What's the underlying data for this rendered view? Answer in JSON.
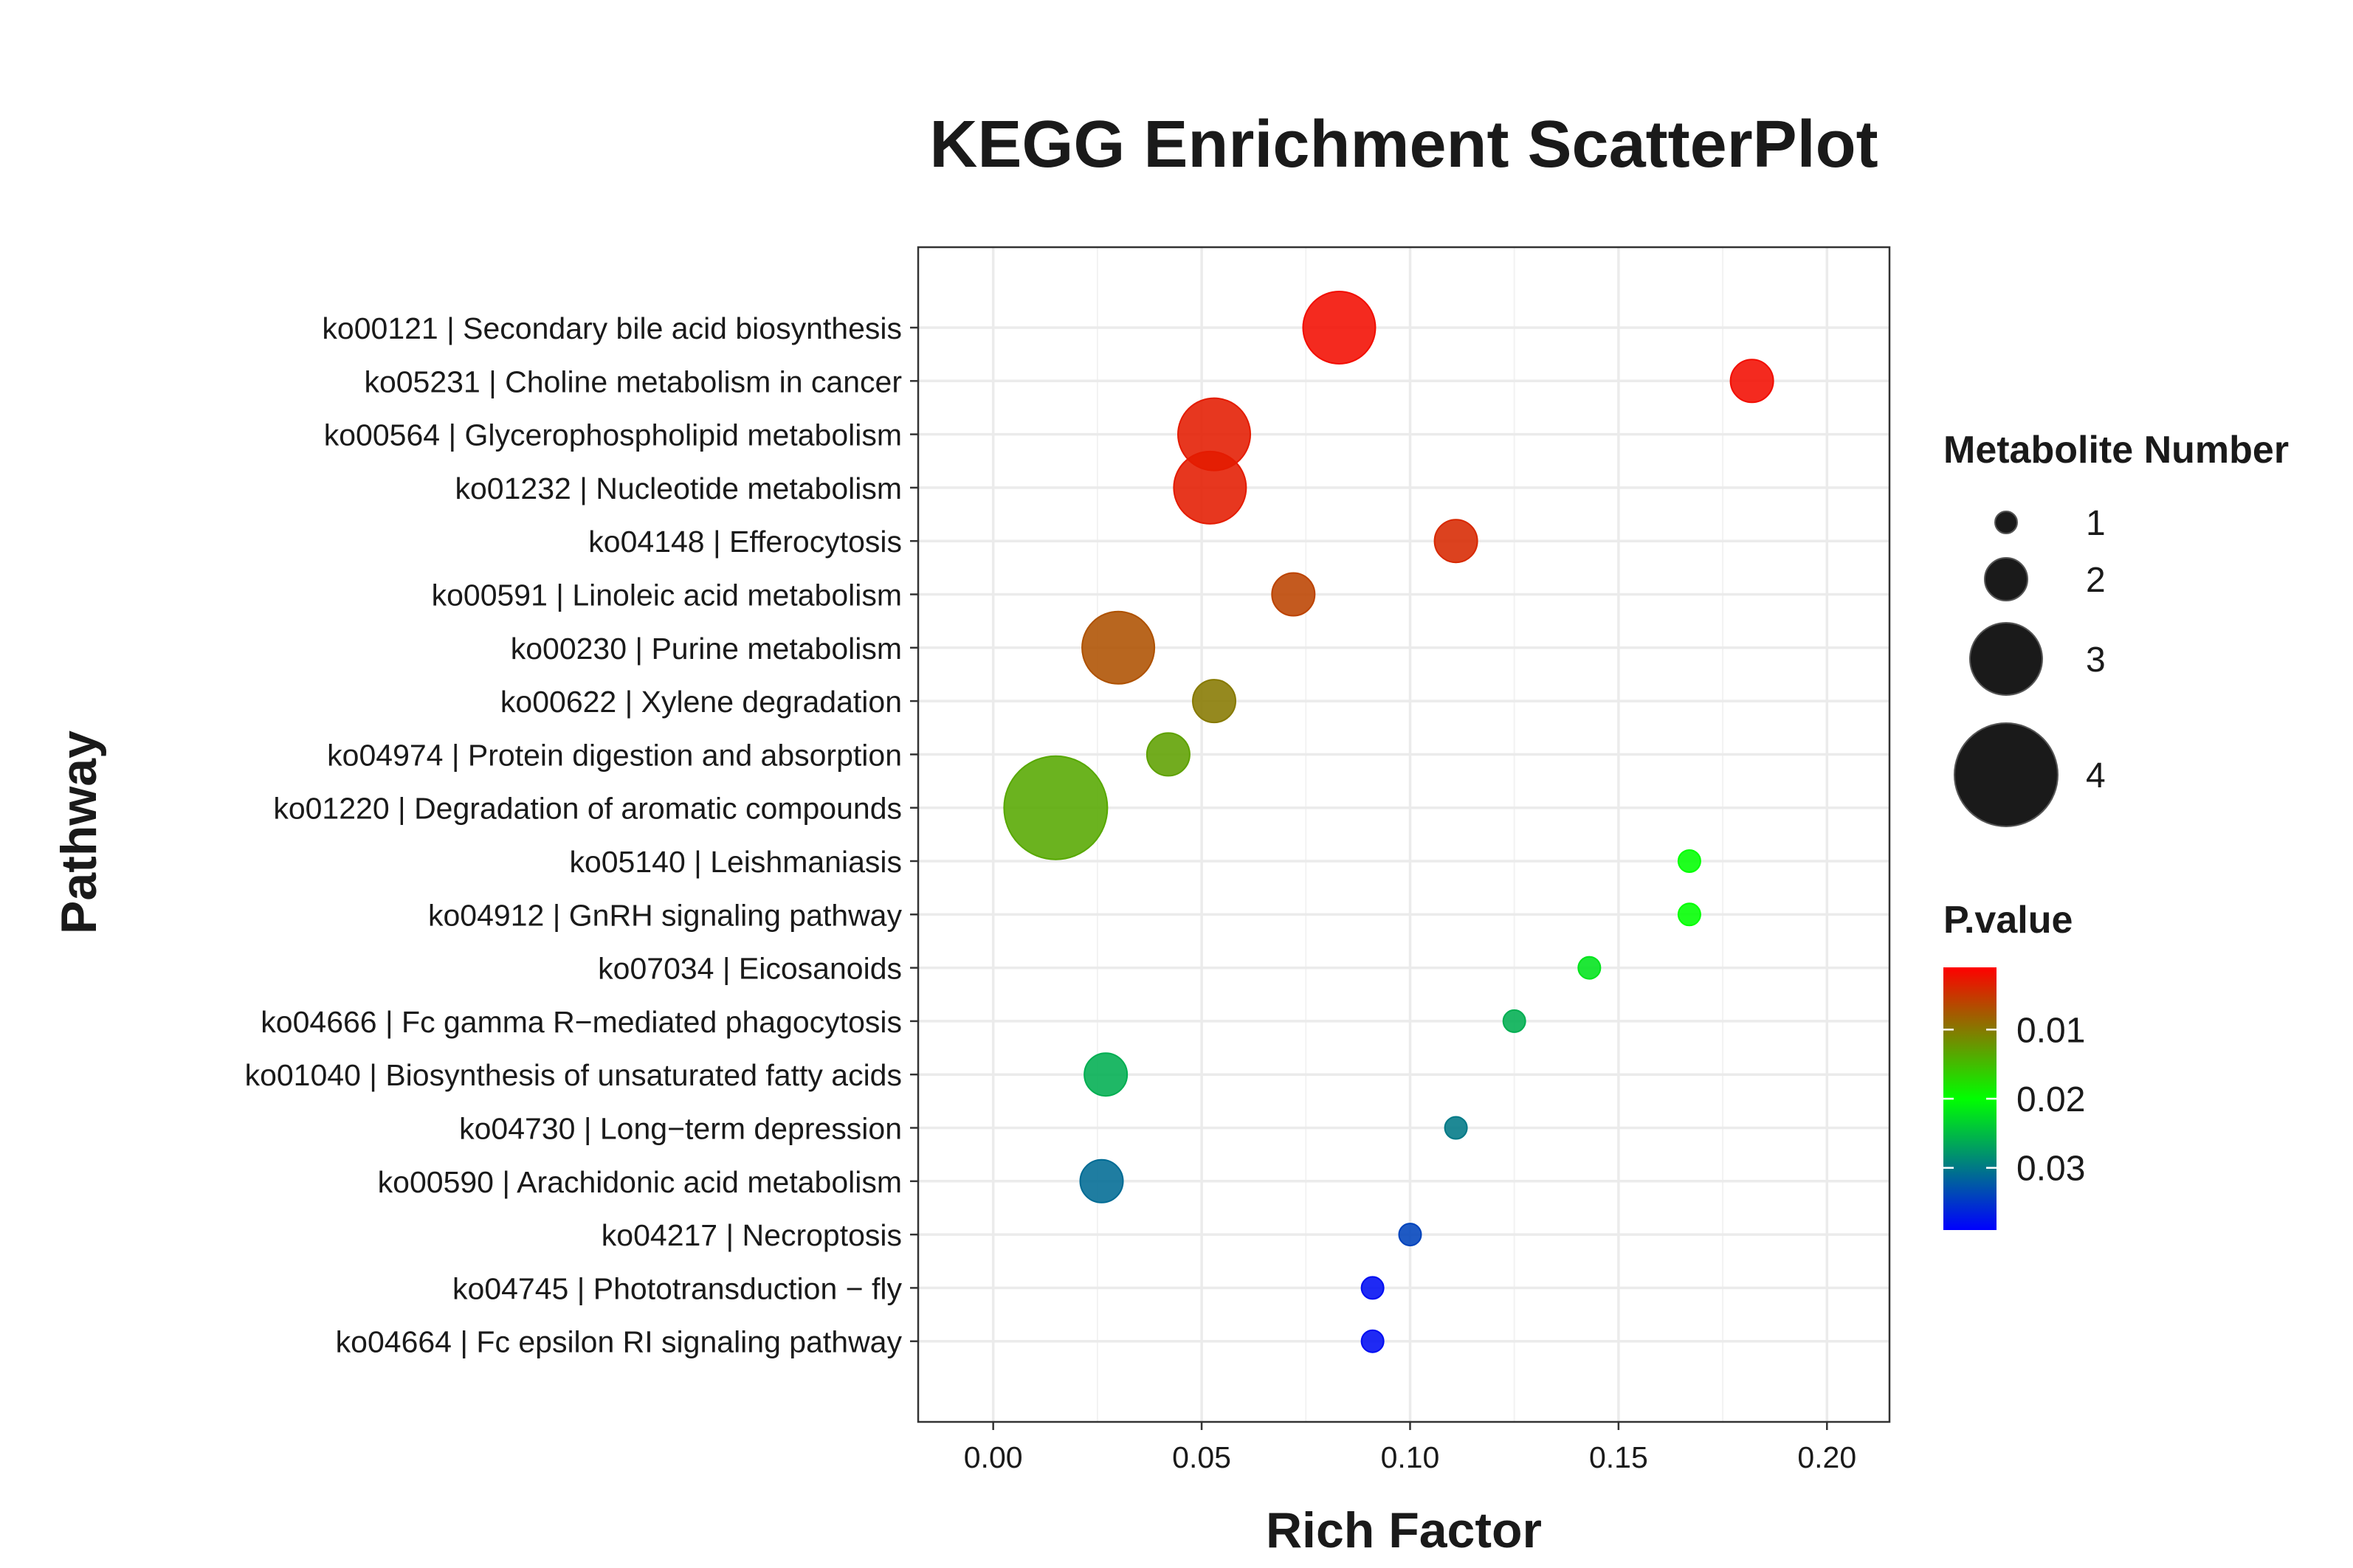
{
  "chart_data": {
    "type": "scatter",
    "title": "KEGG Enrichment ScatterPlot",
    "xlabel": "Rich Factor",
    "ylabel": "Pathway",
    "xlim": [
      -0.018,
      0.215
    ],
    "x_ticks": [
      "0.00",
      "0.05",
      "0.10",
      "0.15",
      "0.20"
    ],
    "x_tick_values": [
      0,
      0.05,
      0.1,
      0.15,
      0.2
    ],
    "grid": true,
    "legend_placement": "right",
    "size_legend": {
      "title": "Metabolite Number",
      "entries": [
        {
          "label": "1",
          "value": 1
        },
        {
          "label": "2",
          "value": 2
        },
        {
          "label": "3",
          "value": 3
        },
        {
          "label": "4",
          "value": 4
        }
      ]
    },
    "color_legend": {
      "title": "P.value",
      "ticks": [
        {
          "label": "0.01",
          "value": 0.01
        },
        {
          "label": "0.02",
          "value": 0.02
        },
        {
          "label": "0.03",
          "value": 0.03
        }
      ],
      "range": [
        0.001,
        0.039
      ],
      "colors": [
        "#ff0000",
        "#00ff00",
        "#0000ff"
      ]
    },
    "points": [
      {
        "pathway": "ko00121 | Secondary bile acid biosynthesis",
        "x": 0.083,
        "size": 3,
        "pvalue": 0.002
      },
      {
        "pathway": "ko05231 | Choline metabolism in cancer",
        "x": 0.182,
        "size": 2,
        "pvalue": 0.002
      },
      {
        "pathway": "ko00564 | Glycerophospholipid metabolism",
        "x": 0.053,
        "size": 3,
        "pvalue": 0.003
      },
      {
        "pathway": "ko01232 | Nucleotide metabolism",
        "x": 0.052,
        "size": 3,
        "pvalue": 0.003
      },
      {
        "pathway": "ko04148 | Efferocytosis",
        "x": 0.111,
        "size": 2,
        "pvalue": 0.004
      },
      {
        "pathway": "ko00591 | Linoleic acid metabolism",
        "x": 0.072,
        "size": 2,
        "pvalue": 0.006
      },
      {
        "pathway": "ko00230 | Purine metabolism",
        "x": 0.03,
        "size": 3,
        "pvalue": 0.007
      },
      {
        "pathway": "ko00622 | Xylene degradation",
        "x": 0.053,
        "size": 2,
        "pvalue": 0.01
      },
      {
        "pathway": "ko04974 | Protein digestion and absorption",
        "x": 0.042,
        "size": 2,
        "pvalue": 0.013
      },
      {
        "pathway": "ko01220 | Degradation of aromatic compounds",
        "x": 0.015,
        "size": 4,
        "pvalue": 0.0135
      },
      {
        "pathway": "ko05140 | Leishmaniasis",
        "x": 0.167,
        "size": 1,
        "pvalue": 0.02
      },
      {
        "pathway": "ko04912 | GnRH signaling pathway",
        "x": 0.167,
        "size": 1,
        "pvalue": 0.02
      },
      {
        "pathway": "ko07034 | Eicosanoids",
        "x": 0.143,
        "size": 1,
        "pvalue": 0.022
      },
      {
        "pathway": "ko04666 | Fc gamma R−mediated phagocytosis",
        "x": 0.125,
        "size": 1,
        "pvalue": 0.026
      },
      {
        "pathway": "ko01040 | Biosynthesis of unsaturated fatty acids",
        "x": 0.027,
        "size": 2,
        "pvalue": 0.026
      },
      {
        "pathway": "ko04730 | Long−term depression",
        "x": 0.111,
        "size": 1,
        "pvalue": 0.03
      },
      {
        "pathway": "ko00590 | Arachidonic acid metabolism",
        "x": 0.026,
        "size": 2,
        "pvalue": 0.031
      },
      {
        "pathway": "ko04217 | Necroptosis",
        "x": 0.1,
        "size": 1,
        "pvalue": 0.034
      },
      {
        "pathway": "ko04745 | Phototransduction − fly",
        "x": 0.091,
        "size": 1,
        "pvalue": 0.038
      },
      {
        "pathway": "ko04664 | Fc epsilon RI signaling pathway",
        "x": 0.091,
        "size": 1,
        "pvalue": 0.038
      }
    ]
  }
}
